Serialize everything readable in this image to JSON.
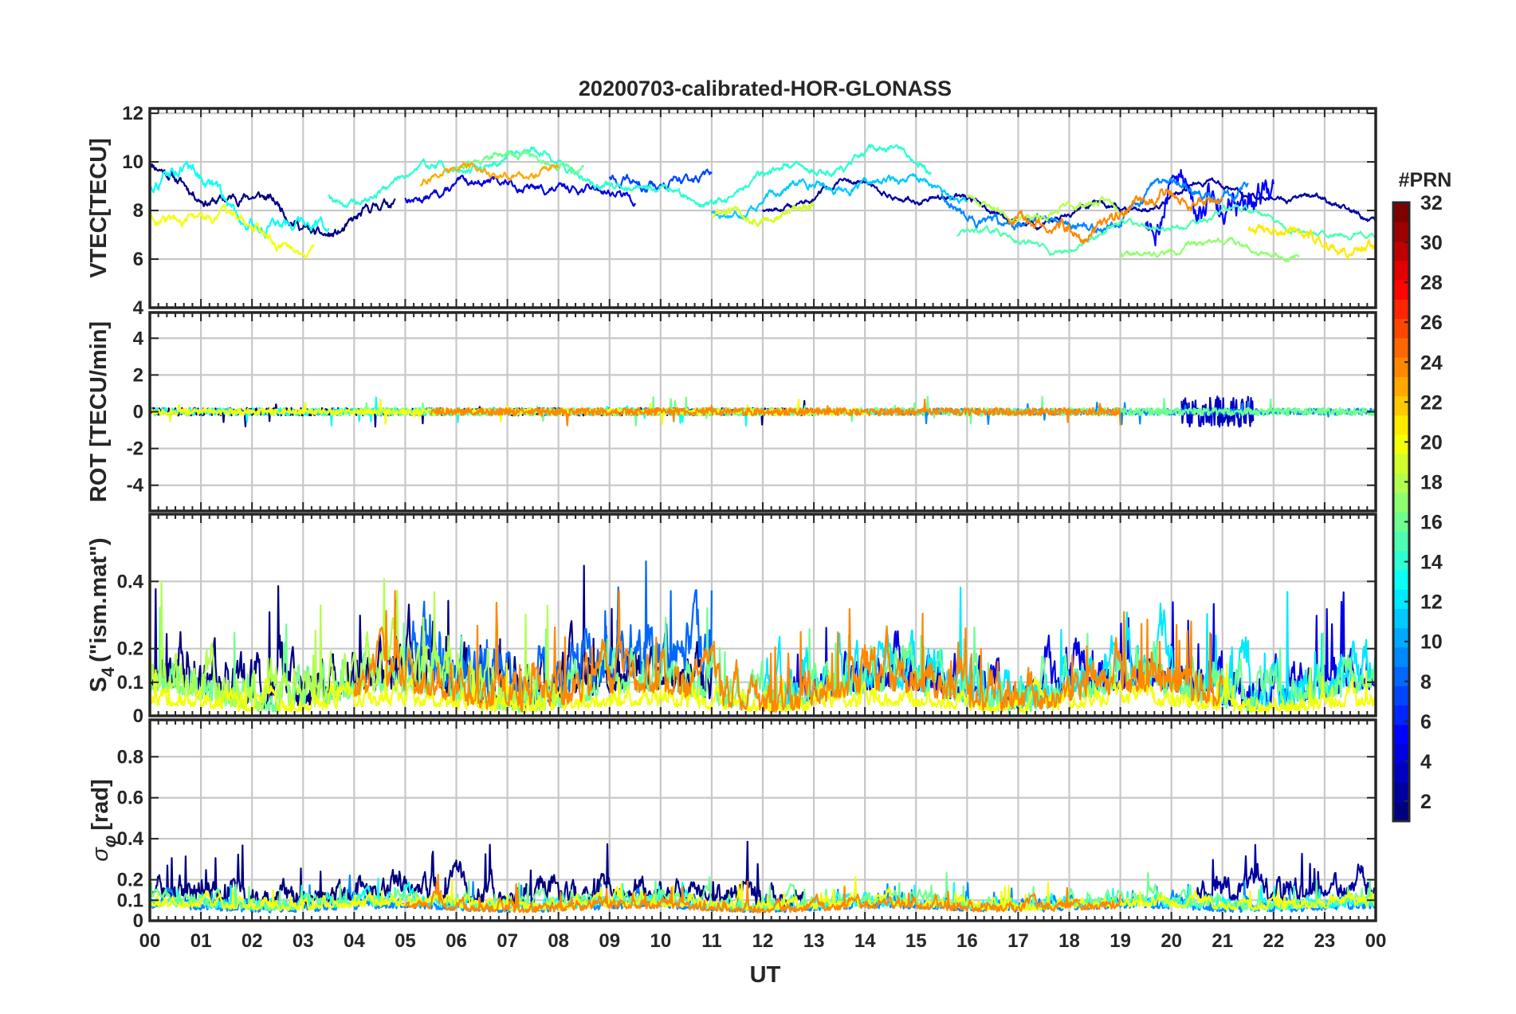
{
  "chart_data": {
    "type": "line",
    "title": "20200703-calibrated-HOR-GLONASS",
    "xlabel": "UT",
    "x_tick_labels": [
      "00",
      "01",
      "02",
      "03",
      "04",
      "05",
      "06",
      "07",
      "08",
      "09",
      "10",
      "11",
      "12",
      "13",
      "14",
      "15",
      "16",
      "17",
      "18",
      "19",
      "20",
      "21",
      "22",
      "23",
      "00"
    ],
    "xlim_hours": [
      0,
      24
    ],
    "grid": true,
    "colorbar": {
      "label": "#PRN",
      "range": [
        1,
        32
      ],
      "ticks": [
        "2",
        "4",
        "6",
        "8",
        "10",
        "12",
        "14",
        "16",
        "18",
        "20",
        "22",
        "24",
        "26",
        "28",
        "30",
        "32"
      ],
      "colormap": "jet"
    },
    "panels": [
      {
        "id": "vtec",
        "ylabel": "VTEC[TECU]",
        "ylim": [
          4,
          12.2
        ],
        "yticks": [
          4,
          6,
          8,
          10,
          12
        ],
        "ytick_labels": [
          "4",
          "6",
          "8",
          "10",
          "12"
        ],
        "series": [
          {
            "prn": 1,
            "start": 0.0,
            "end": 4.8,
            "base": 8.4,
            "amp": 1.0,
            "noise": 0.25,
            "seed": 11
          },
          {
            "prn": 2,
            "start": 12.0,
            "end": 24.0,
            "base": 8.3,
            "amp": 0.6,
            "noise": 0.15,
            "seed": 12
          },
          {
            "prn": 4,
            "start": 5.0,
            "end": 9.5,
            "base": 8.7,
            "amp": 0.4,
            "noise": 0.2,
            "seed": 13
          },
          {
            "prn": 5,
            "start": 19.5,
            "end": 22.0,
            "base": 7.6,
            "amp": 1.2,
            "noise": 0.9,
            "seed": 14
          },
          {
            "prn": 7,
            "start": 9.0,
            "end": 11.0,
            "base": 9.6,
            "amp": 0.5,
            "noise": 0.25,
            "seed": 15
          },
          {
            "prn": 9,
            "start": 15.5,
            "end": 21.5,
            "base": 8.2,
            "amp": 0.8,
            "noise": 0.25,
            "seed": 16
          },
          {
            "prn": 11,
            "start": 11.0,
            "end": 16.0,
            "base": 8.6,
            "amp": 0.6,
            "noise": 0.2,
            "seed": 17
          },
          {
            "prn": 13,
            "start": 0.0,
            "end": 3.5,
            "base": 8.2,
            "amp": 1.2,
            "noise": 0.3,
            "seed": 18
          },
          {
            "prn": 14,
            "start": 3.5,
            "end": 15.3,
            "base": 9.4,
            "amp": 0.8,
            "noise": 0.2,
            "seed": 19
          },
          {
            "prn": 15,
            "start": 15.8,
            "end": 24.0,
            "base": 7.2,
            "amp": 0.6,
            "noise": 0.15,
            "seed": 20
          },
          {
            "prn": 16,
            "start": 6.0,
            "end": 8.5,
            "base": 9.8,
            "amp": 0.4,
            "noise": 0.2,
            "seed": 21
          },
          {
            "prn": 17,
            "start": 19.0,
            "end": 22.5,
            "base": 6.2,
            "amp": 0.4,
            "noise": 0.15,
            "seed": 22
          },
          {
            "prn": 18,
            "start": 16.0,
            "end": 19.0,
            "base": 8.4,
            "amp": 0.5,
            "noise": 0.2,
            "seed": 23
          },
          {
            "prn": 19,
            "start": 11.0,
            "end": 13.0,
            "base": 8.0,
            "amp": 0.5,
            "noise": 0.25,
            "seed": 24
          },
          {
            "prn": 20,
            "start": 0.0,
            "end": 3.2,
            "base": 7.3,
            "amp": 0.6,
            "noise": 0.25,
            "seed": 25
          },
          {
            "prn": 21,
            "start": 21.5,
            "end": 24.0,
            "base": 6.9,
            "amp": 0.5,
            "noise": 0.3,
            "seed": 26
          },
          {
            "prn": 23,
            "start": 5.3,
            "end": 8.0,
            "base": 9.0,
            "amp": 0.8,
            "noise": 0.2,
            "seed": 27
          },
          {
            "prn": 24,
            "start": 16.8,
            "end": 21.0,
            "base": 8.0,
            "amp": 0.8,
            "noise": 0.3,
            "seed": 28
          }
        ]
      },
      {
        "id": "rot",
        "ylabel": "ROT [TECU/min]",
        "ylim": [
          -5.4,
          5.4
        ],
        "yticks": [
          -4,
          -2,
          0,
          2,
          4
        ],
        "ytick_labels": [
          "-4",
          "-2",
          "0",
          "2",
          "4"
        ],
        "series": [
          {
            "prn": 1,
            "start": 0.0,
            "end": 13.0,
            "base": 0,
            "amp": 0.0,
            "noise": 0.3,
            "seed": 31
          },
          {
            "prn": 3,
            "start": 20.2,
            "end": 21.6,
            "base": 0,
            "amp": 0.0,
            "noise": 1.2,
            "seed": 32
          },
          {
            "prn": 9,
            "start": 14.0,
            "end": 24.0,
            "base": 0,
            "amp": 0.0,
            "noise": 0.25,
            "seed": 33
          },
          {
            "prn": 13,
            "start": 0.0,
            "end": 12.0,
            "base": 0,
            "amp": 0.0,
            "noise": 0.3,
            "seed": 34
          },
          {
            "prn": 16,
            "start": 4.0,
            "end": 24.0,
            "base": 0,
            "amp": 0.0,
            "noise": 0.3,
            "seed": 35
          },
          {
            "prn": 20,
            "start": 0.0,
            "end": 14.0,
            "base": 0,
            "amp": 0.0,
            "noise": 0.25,
            "seed": 36
          },
          {
            "prn": 24,
            "start": 5.5,
            "end": 19.0,
            "base": 0,
            "amp": 0.0,
            "noise": 0.3,
            "seed": 37
          }
        ]
      },
      {
        "id": "s4",
        "ylabel_main": "S",
        "ylabel_sub": "4",
        "ylabel_rest": "(\"ism.mat\")",
        "ylim": [
          0,
          0.6
        ],
        "yticks": [
          0,
          0.1,
          0.2,
          0.4
        ],
        "ytick_labels": [
          "0",
          "0.1",
          "0.2",
          "0.4"
        ],
        "series": [
          {
            "prn": 1,
            "start": 0.0,
            "end": 11.0,
            "base": 0.05,
            "amp": 0.03,
            "noise": 0.08,
            "seed": 41
          },
          {
            "prn": 4,
            "start": 12.5,
            "end": 24.0,
            "base": 0.05,
            "amp": 0.03,
            "noise": 0.07,
            "seed": 42
          },
          {
            "prn": 8,
            "start": 5.0,
            "end": 11.0,
            "base": 0.07,
            "amp": 0.04,
            "noise": 0.09,
            "seed": 43
          },
          {
            "prn": 12,
            "start": 12.0,
            "end": 24.0,
            "base": 0.05,
            "amp": 0.03,
            "noise": 0.07,
            "seed": 44
          },
          {
            "prn": 16,
            "start": 0.0,
            "end": 24.0,
            "base": 0.04,
            "amp": 0.03,
            "noise": 0.06,
            "seed": 45
          },
          {
            "prn": 18,
            "start": 0.0,
            "end": 8.0,
            "base": 0.04,
            "amp": 0.03,
            "noise": 0.07,
            "seed": 46
          },
          {
            "prn": 20,
            "start": 0.0,
            "end": 24.0,
            "base": 0.02,
            "amp": 0.01,
            "noise": 0.03,
            "seed": 47
          },
          {
            "prn": 24,
            "start": 4.0,
            "end": 21.0,
            "base": 0.04,
            "amp": 0.03,
            "noise": 0.06,
            "seed": 48
          }
        ]
      },
      {
        "id": "sigma",
        "ylabel_main": "σ",
        "ylabel_sub": "φ",
        "ylabel_rest": "[rad]",
        "ylim": [
          0,
          0.98
        ],
        "yticks": [
          0,
          0.1,
          0.2,
          0.4,
          0.6,
          0.8
        ],
        "ytick_labels": [
          "0",
          "0.1",
          "0.2",
          "0.4",
          "0.6",
          "0.8"
        ],
        "series": [
          {
            "prn": 1,
            "start": 0.0,
            "end": 12.8,
            "base": 0.09,
            "amp": 0.02,
            "noise": 0.06,
            "seed": 51
          },
          {
            "prn": 2,
            "start": 20.5,
            "end": 24.0,
            "base": 0.11,
            "amp": 0.02,
            "noise": 0.06,
            "seed": 52
          },
          {
            "prn": 9,
            "start": 0.0,
            "end": 24.0,
            "base": 0.05,
            "amp": 0.01,
            "noise": 0.03,
            "seed": 53
          },
          {
            "prn": 13,
            "start": 0.0,
            "end": 24.0,
            "base": 0.06,
            "amp": 0.01,
            "noise": 0.03,
            "seed": 54
          },
          {
            "prn": 16,
            "start": 0.0,
            "end": 24.0,
            "base": 0.07,
            "amp": 0.02,
            "noise": 0.03,
            "seed": 55
          },
          {
            "prn": 20,
            "start": 0.0,
            "end": 24.0,
            "base": 0.06,
            "amp": 0.01,
            "noise": 0.03,
            "seed": 56
          },
          {
            "prn": 24,
            "start": 5.0,
            "end": 19.0,
            "base": 0.05,
            "amp": 0.01,
            "noise": 0.03,
            "seed": 57
          }
        ]
      }
    ]
  }
}
